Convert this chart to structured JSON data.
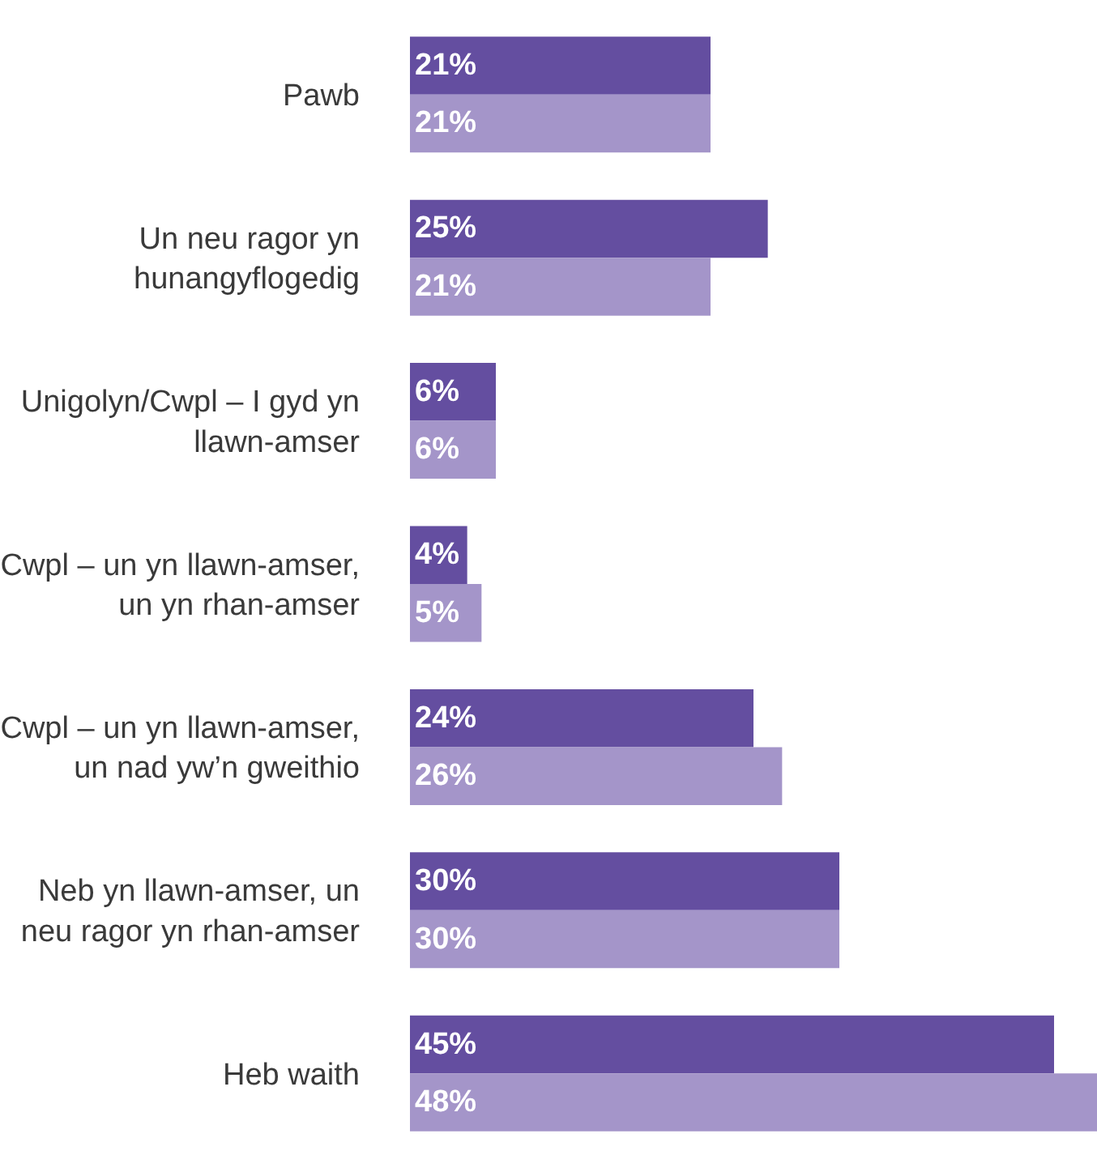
{
  "chart_data": {
    "type": "bar",
    "orientation": "horizontal",
    "categories": [
      "Pawb",
      "Un neu ragor yn\nhunangyflogedig",
      "Unigolyn/Cwpl – I gyd yn\nllawn-amser",
      "Cwpl – un yn llawn-amser,\nun yn rhan-amser",
      "Cwpl – un yn llawn-amser,\nun nad yw’n gweithio",
      "Neb yn llawn-amser, un\nneu ragor yn rhan-amser",
      "Heb waith"
    ],
    "series": [
      {
        "color": "#644ea0",
        "values": [
          21,
          25,
          6,
          4,
          24,
          30,
          45
        ],
        "value_labels": [
          "21%",
          "25%",
          "6%",
          "4%",
          "24%",
          "30%",
          "45%"
        ]
      },
      {
        "color": "#a495c9",
        "values": [
          21,
          21,
          6,
          5,
          26,
          30,
          48
        ],
        "value_labels": [
          "21%",
          "21%",
          "6%",
          "5%",
          "26%",
          "30%",
          "48%"
        ]
      }
    ],
    "legend": false
  }
}
